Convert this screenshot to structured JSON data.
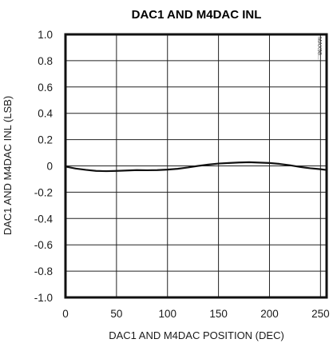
{
  "chart_data": {
    "type": "line",
    "title": "DAC1 AND M4DAC INL",
    "xlabel": "DAC1 AND M4DAC POSITION (DEC)",
    "ylabel": "DAC1 AND M4DAC INL (LSB)",
    "xlim": [
      0,
      256
    ],
    "ylim": [
      -1.0,
      1.0
    ],
    "x_ticks": [
      "0",
      "50",
      "100",
      "150",
      "200",
      "250"
    ],
    "y_ticks": [
      "1.0",
      "0.8",
      "0.6",
      "0.4",
      "0.2",
      "0",
      "-0.2",
      "-0.4",
      "-0.6",
      "-0.8",
      "-1.0"
    ],
    "grid": true,
    "side_code": "MAX98...",
    "series": [
      {
        "color": "#111111",
        "x": [
          0,
          10,
          20,
          30,
          40,
          50,
          60,
          70,
          80,
          90,
          100,
          110,
          120,
          130,
          140,
          150,
          160,
          170,
          180,
          190,
          200,
          210,
          220,
          230,
          240,
          250,
          255
        ],
        "y": [
          -0.005,
          -0.02,
          -0.03,
          -0.038,
          -0.04,
          -0.038,
          -0.035,
          -0.032,
          -0.033,
          -0.032,
          -0.028,
          -0.022,
          -0.012,
          0.0,
          0.01,
          0.018,
          0.022,
          0.026,
          0.028,
          0.025,
          0.022,
          0.015,
          0.005,
          -0.008,
          -0.018,
          -0.025,
          -0.03
        ]
      }
    ]
  }
}
